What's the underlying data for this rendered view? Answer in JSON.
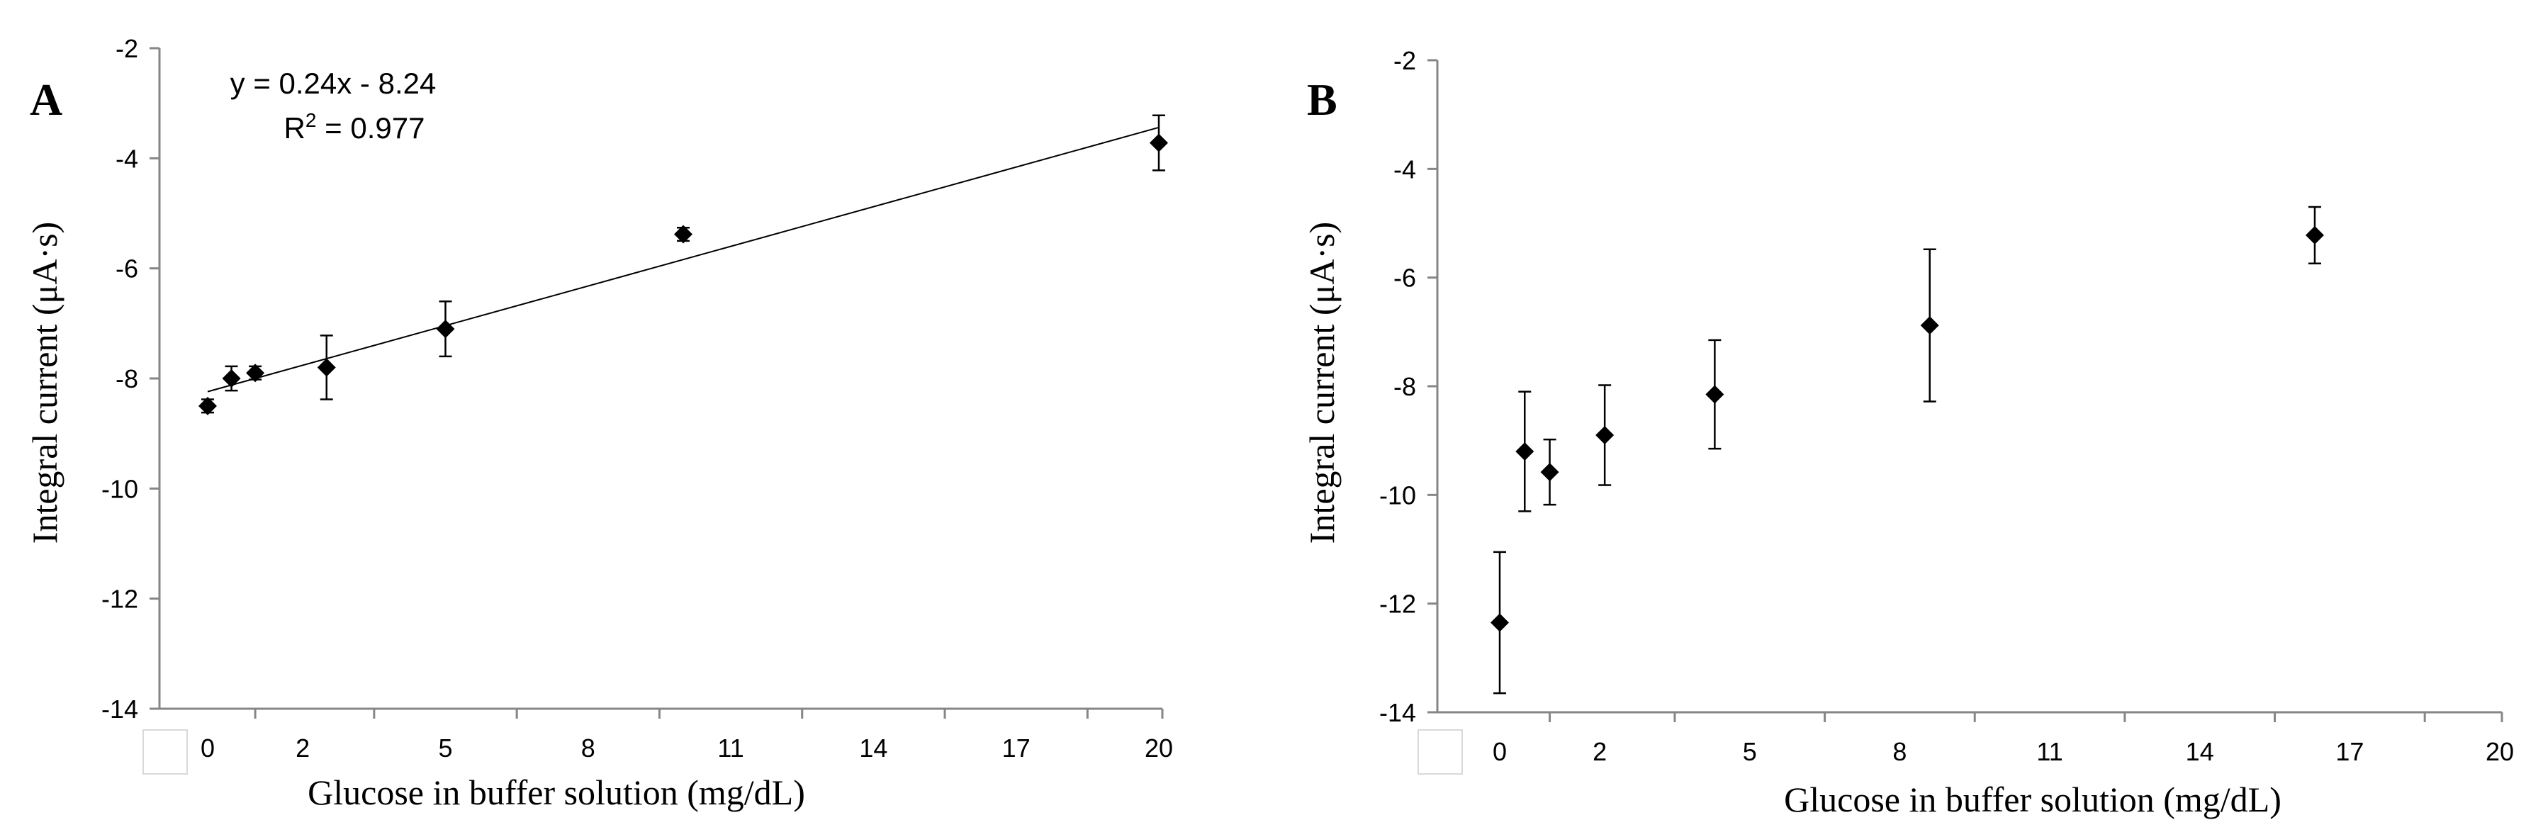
{
  "chart_data": [
    {
      "type": "scatter",
      "panel_label": "A",
      "xlabel": "Glucose in buffer solution (mg/dL)",
      "ylabel": "Integral current (μA·s)",
      "x_ticks": [
        "0",
        "2",
        "5",
        "8",
        "11",
        "14",
        "17",
        "20"
      ],
      "y_ticks": [
        "-2",
        "-4",
        "-6",
        "-8",
        "-10",
        "-12",
        "-14"
      ],
      "x_tick_values": [
        0,
        2,
        5,
        8,
        11,
        14,
        17,
        20
      ],
      "xlim": [
        -1,
        20
      ],
      "ylim": [
        -14,
        -2
      ],
      "grid": false,
      "points": [
        {
          "x": 0.0,
          "y": -8.5,
          "err": 0.12
        },
        {
          "x": 0.5,
          "y": -8.0,
          "err": 0.22
        },
        {
          "x": 1.0,
          "y": -7.9,
          "err": 0.12
        },
        {
          "x": 2.5,
          "y": -7.8,
          "err": 0.58
        },
        {
          "x": 5.0,
          "y": -7.1,
          "err": 0.5
        },
        {
          "x": 10.0,
          "y": -5.38,
          "err": 0.12
        },
        {
          "x": 20.0,
          "y": -3.72,
          "err": 0.5
        }
      ],
      "trendline": {
        "x_start": 0.0,
        "y_start": -8.24,
        "x_end": 20.0,
        "y_end": -3.44
      },
      "equation_line1": "y = 0.24x - 8.24",
      "equation_line2_prefix": "R",
      "equation_line2_sup": "2",
      "equation_line2_suffix": " = 0.977"
    },
    {
      "type": "scatter",
      "panel_label": "B",
      "xlabel": "Glucose in buffer solution (mg/dL)",
      "ylabel": "Integral current (μA·s)",
      "x_ticks": [
        "0",
        "2",
        "5",
        "8",
        "11",
        "14",
        "17",
        "20"
      ],
      "y_ticks": [
        "-2",
        "-4",
        "-6",
        "-8",
        "-10",
        "-12",
        "-14"
      ],
      "x_tick_values": [
        0,
        2,
        5,
        8,
        11,
        14,
        17,
        20
      ],
      "xlim": [
        -1,
        20
      ],
      "ylim": [
        -14,
        -2
      ],
      "grid": false,
      "points": [
        {
          "x": 0.0,
          "y": -12.35,
          "err": 1.3
        },
        {
          "x": 0.5,
          "y": -9.2,
          "err": 1.1
        },
        {
          "x": 1.0,
          "y": -9.58,
          "err": 0.6
        },
        {
          "x": 2.1,
          "y": -8.9,
          "err": 0.92
        },
        {
          "x": 4.3,
          "y": -8.15,
          "err": 1.0
        },
        {
          "x": 8.6,
          "y": -6.88,
          "err": 1.4
        },
        {
          "x": 16.3,
          "y": -5.22,
          "err": 0.52
        }
      ]
    }
  ]
}
